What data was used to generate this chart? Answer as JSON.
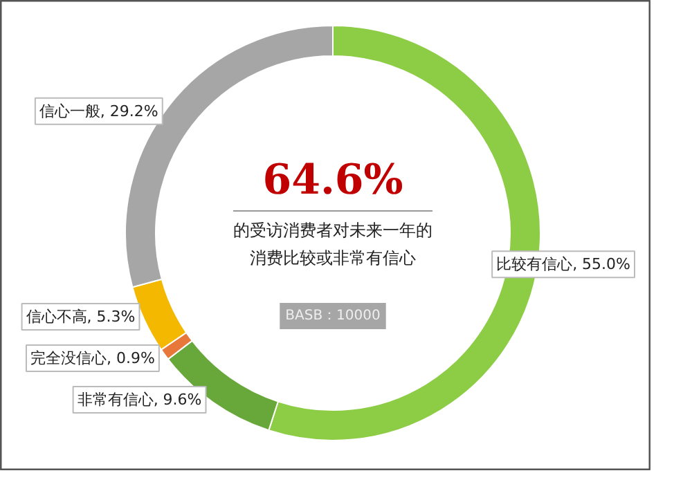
{
  "chart_data": {
    "type": "donut",
    "categories": [
      "比较有信心",
      "非常有信心",
      "完全没信心",
      "信心不高",
      "信心一般"
    ],
    "values": [
      55.0,
      9.6,
      0.9,
      5.3,
      29.2
    ],
    "colors": [
      "#8dcc45",
      "#68a83a",
      "#e8773a",
      "#f5b800",
      "#a6a6a6"
    ],
    "value_labels": [
      "55.0%",
      "9.6%",
      "0.9%",
      "5.3%",
      "29.2%"
    ],
    "annotations": [
      "64.6%",
      "的受访消费者对未来一年的",
      "消费比较或非常有信心",
      "BASB：10000"
    ]
  }
}
